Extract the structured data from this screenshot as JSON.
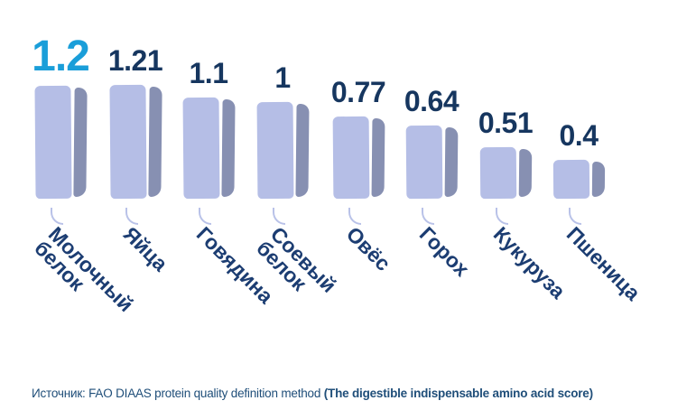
{
  "chart_data": {
    "type": "bar",
    "title": "",
    "xlabel": "",
    "ylabel": "",
    "ylim": [
      0,
      1.3
    ],
    "grid": false,
    "legend": "none",
    "categories": [
      "Молочный\nбелок",
      "Яйца",
      "Говядина",
      "Соевый\nбелок",
      "Овёс",
      "Горох",
      "Кукуруза",
      "Пшеница"
    ],
    "values": [
      1.2,
      1.21,
      1.1,
      1,
      0.77,
      0.64,
      0.51,
      0.4
    ],
    "highlight_index": 0,
    "style": "hand-drawn 3d bars, value labels above bars, category labels rotated 45deg",
    "colors": {
      "bar_face": "#b5bee6",
      "bar_side": "#8790b2",
      "value_text": "#16365f",
      "highlight_value_text": "#1a9ed9",
      "category_text": "#1c3d72",
      "connector": "#b9c2e8"
    }
  },
  "source": {
    "prefix": "Источник: FAO DIAAS protein quality definition method ",
    "emphasis": "(The digestible indispensable amino acid score)",
    "color": "#1f4e79"
  }
}
